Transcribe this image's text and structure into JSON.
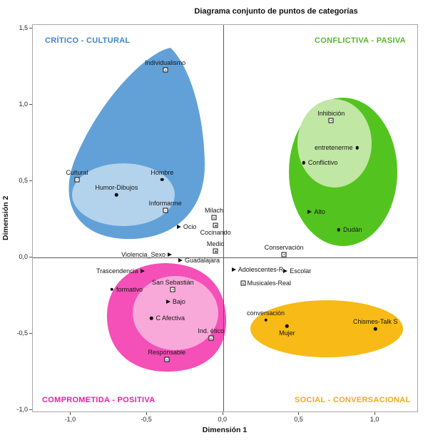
{
  "chart_data": {
    "type": "scatter",
    "title": "Diagrama conjunto de puntos de categorías",
    "xlabel": "Dimensión 1",
    "ylabel": "Dimensión 2",
    "xlim": [
      -1.25,
      1.285
    ],
    "ylim": [
      -1.02,
      1.525
    ],
    "grid": false,
    "x_ticks": [
      {
        "value": -1.0,
        "label": "-1,0"
      },
      {
        "value": -0.5,
        "label": "-0,5"
      },
      {
        "value": 0.0,
        "label": "0,0"
      },
      {
        "value": 0.5,
        "label": "0,5"
      },
      {
        "value": 1.0,
        "label": "1,0"
      }
    ],
    "y_ticks": [
      {
        "value": 1.5,
        "label": "1,5"
      },
      {
        "value": 1.0,
        "label": "1,0"
      },
      {
        "value": 0.5,
        "label": "0,5"
      },
      {
        "value": 0.0,
        "label": "0,0"
      },
      {
        "value": -0.5,
        "label": "-0,5"
      },
      {
        "value": -1.0,
        "label": "-1,0"
      }
    ],
    "regions": [
      {
        "id": "critico-cultural",
        "label": "CRÍTICO - CULTURAL",
        "color": "#61a1d8",
        "inner_color": "#b3d2ec",
        "label_color": "#3d85c8"
      },
      {
        "id": "conflictiva-pasiva",
        "label": "CONFLICTIVA - PASIVA",
        "color": "#53c41f",
        "inner_color": "#c0e7a4",
        "label_color": "#54b82a"
      },
      {
        "id": "comprometida-positiva",
        "label": "COMPROMETIDA - POSITIVA",
        "color": "#f54fb8",
        "inner_color": "#f9a8da",
        "label_color": "#ee1fa4"
      },
      {
        "id": "social-conversacional",
        "label": "SOCIAL - CONVERSACIONAL",
        "color": "#f7ba16",
        "inner_color": "#f7ba16",
        "label_color": "#efac15"
      }
    ],
    "points": [
      {
        "label": "Individualismo",
        "x": -0.38,
        "y": 1.23,
        "marker": "square",
        "label_pos": "above",
        "region": "critico-cultural"
      },
      {
        "label": "Cultural",
        "x": -0.96,
        "y": 0.51,
        "marker": "square",
        "label_pos": "above",
        "region": "critico-cultural"
      },
      {
        "label": "Hombre",
        "x": -0.4,
        "y": 0.51,
        "marker": "dot",
        "label_pos": "above",
        "region": "critico-cultural"
      },
      {
        "label": "Humor-Dibujos",
        "x": -0.7,
        "y": 0.41,
        "marker": "dot",
        "label_pos": "above",
        "region": "critico-cultural"
      },
      {
        "label": "Informarme",
        "x": -0.38,
        "y": 0.31,
        "marker": "square",
        "label_pos": "above",
        "region": "critico-cultural"
      },
      {
        "label": "Milach",
        "x": -0.06,
        "y": 0.26,
        "marker": "square",
        "label_pos": "above",
        "region": "none"
      },
      {
        "label": "Ocio",
        "x": -0.29,
        "y": 0.2,
        "marker": "triangle",
        "label_pos": "right",
        "region": "none"
      },
      {
        "label": "Cocinando",
        "x": -0.05,
        "y": 0.21,
        "marker": "square",
        "label_pos": "below",
        "region": "none"
      },
      {
        "label": "Medio",
        "x": -0.05,
        "y": 0.04,
        "marker": "square",
        "label_pos": "above",
        "region": "none"
      },
      {
        "label": "Violencia_Sexo",
        "x": -0.35,
        "y": 0.02,
        "marker": "triangle",
        "label_pos": "left",
        "region": "none"
      },
      {
        "label": "Guadalajara",
        "x": -0.28,
        "y": -0.02,
        "marker": "triangle",
        "label_pos": "right",
        "region": "none"
      },
      {
        "label": "Conservación",
        "x": 0.4,
        "y": 0.02,
        "marker": "square",
        "label_pos": "above",
        "region": "none"
      },
      {
        "label": "Adolescentes-R",
        "x": 0.07,
        "y": -0.08,
        "marker": "triangle",
        "label_pos": "right",
        "region": "none"
      },
      {
        "label": "Escolar",
        "x": 0.41,
        "y": -0.09,
        "marker": "triangle",
        "label_pos": "right",
        "region": "none"
      },
      {
        "label": "Musicales-Real",
        "x": 0.13,
        "y": -0.17,
        "marker": "square",
        "label_pos": "right",
        "region": "none"
      },
      {
        "label": "Inhibición",
        "x": 0.71,
        "y": 0.9,
        "marker": "square",
        "label_pos": "above",
        "region": "conflictiva-pasiva"
      },
      {
        "label": "entretenerme",
        "x": 0.88,
        "y": 0.72,
        "marker": "dot",
        "label_pos": "left",
        "region": "conflictiva-pasiva"
      },
      {
        "label": "Conflictivo",
        "x": 0.53,
        "y": 0.62,
        "marker": "dot",
        "label_pos": "right",
        "region": "conflictiva-pasiva"
      },
      {
        "label": "Alto",
        "x": 0.57,
        "y": 0.3,
        "marker": "triangle",
        "label_pos": "right",
        "region": "conflictiva-pasiva"
      },
      {
        "label": "Dudán",
        "x": 0.76,
        "y": 0.18,
        "marker": "dot",
        "label_pos": "right",
        "region": "conflictiva-pasiva"
      },
      {
        "label": "Trascendencia",
        "x": -0.53,
        "y": -0.09,
        "marker": "triangle",
        "label_pos": "left",
        "region": "comprometida-positiva"
      },
      {
        "label": "formativo",
        "x": -0.73,
        "y": -0.21,
        "marker": "dot",
        "label_pos": "right",
        "region": "comprometida-positiva"
      },
      {
        "label": "San Sebastián",
        "x": -0.33,
        "y": -0.21,
        "marker": "square",
        "label_pos": "above",
        "region": "comprometida-positiva"
      },
      {
        "label": "Bajo",
        "x": -0.36,
        "y": -0.29,
        "marker": "triangle",
        "label_pos": "right",
        "region": "comprometida-positiva"
      },
      {
        "label": "C Afectiva",
        "x": -0.47,
        "y": -0.4,
        "marker": "dot",
        "label_pos": "right",
        "region": "comprometida-positiva"
      },
      {
        "label": "Ind. ético",
        "x": -0.08,
        "y": -0.53,
        "marker": "square",
        "label_pos": "above",
        "region": "comprometida-positiva"
      },
      {
        "label": "Responsable",
        "x": -0.37,
        "y": -0.67,
        "marker": "square",
        "label_pos": "above",
        "region": "comprometida-positiva"
      },
      {
        "label": "conversación",
        "x": 0.28,
        "y": -0.41,
        "marker": "dot",
        "label_pos": "above",
        "region": "social-conversacional"
      },
      {
        "label": "Mujer",
        "x": 0.42,
        "y": -0.45,
        "marker": "dot",
        "label_pos": "below",
        "region": "social-conversacional"
      },
      {
        "label": "Chismes-Talk S",
        "x": 1.0,
        "y": -0.47,
        "marker": "dot",
        "label_pos": "above",
        "region": "social-conversacional"
      }
    ]
  }
}
